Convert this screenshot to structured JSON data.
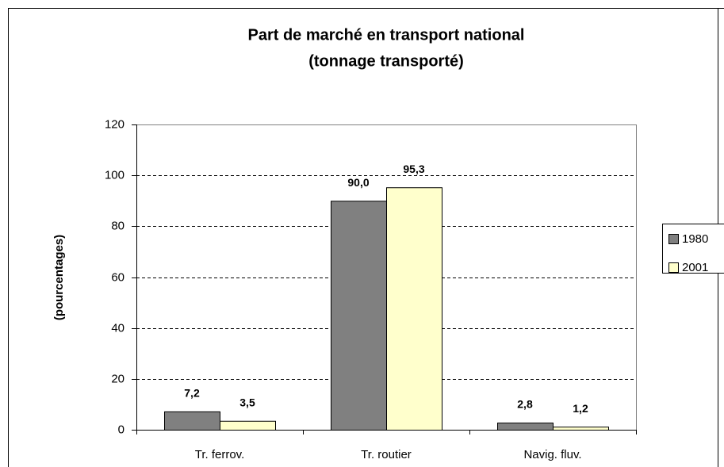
{
  "chart_data": {
    "type": "bar",
    "title": [
      "Part de marché en transport national",
      "(tonnage transporté)"
    ],
    "y_label": "(pourcentages)",
    "categories": [
      "Tr. ferrov.",
      "Tr. routier",
      "Navig. fluv."
    ],
    "series": [
      {
        "name": "1980",
        "color": "#808080",
        "values": [
          7.2,
          90.0,
          2.8
        ],
        "value_labels": [
          "7,2",
          "90,0",
          "2,8"
        ]
      },
      {
        "name": "2001",
        "color": "#ffffcc",
        "values": [
          3.5,
          95.3,
          1.2
        ],
        "value_labels": [
          "3,5",
          "95,3",
          "1,2"
        ]
      }
    ],
    "ylim": [
      0,
      120
    ],
    "yticks": [
      0,
      20,
      40,
      60,
      80,
      100,
      120
    ],
    "grid": true,
    "legend": "right"
  }
}
